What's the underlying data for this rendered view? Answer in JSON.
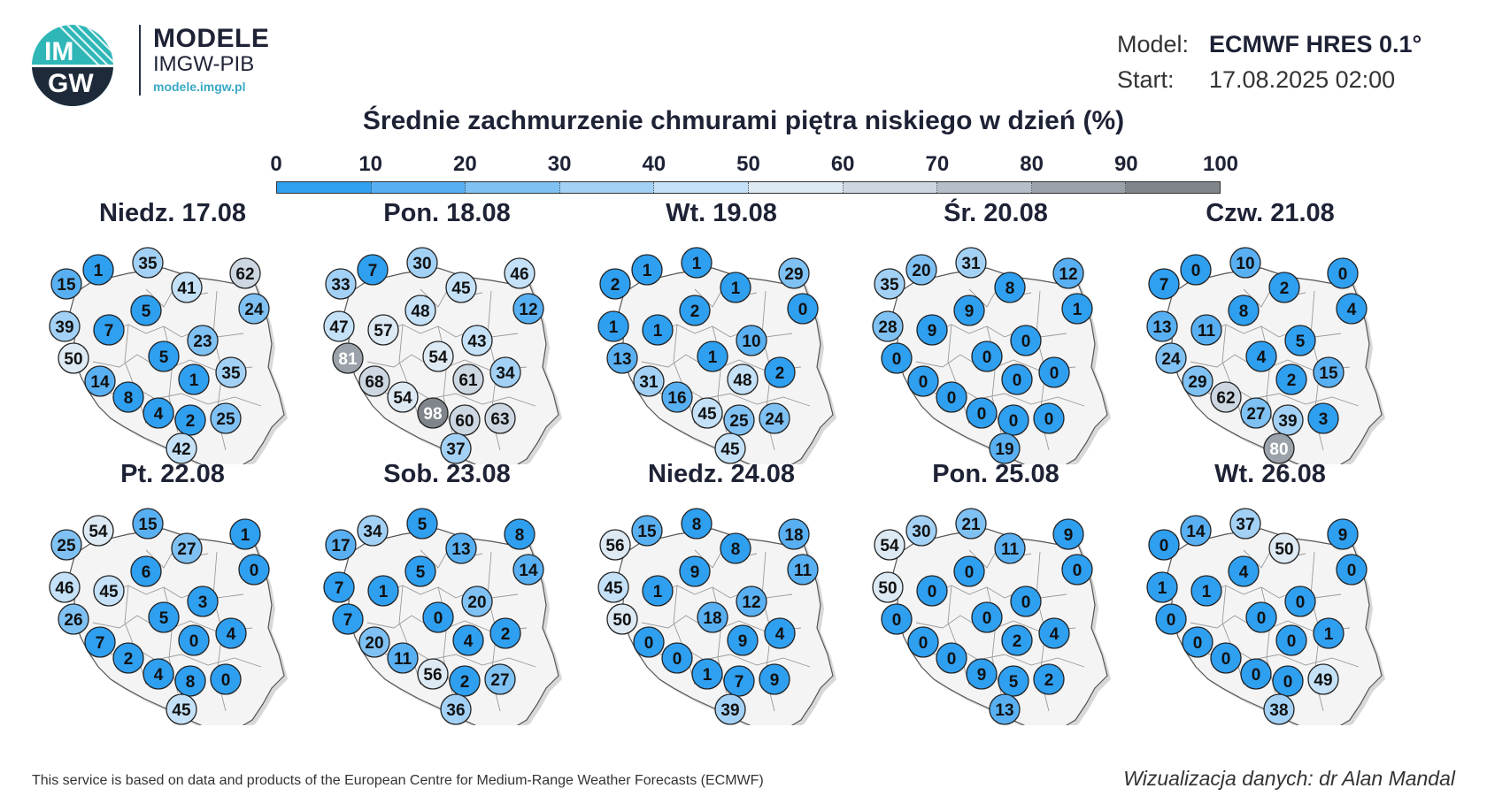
{
  "header": {
    "logo_text_top": "IM",
    "logo_text_bottom": "GW",
    "brand_name": "MODELE",
    "brand_sub": "IMGW-PIB",
    "brand_url": "modele.imgw.pl",
    "model_label": "Model:",
    "model_value": "ECMWF HRES 0.1°",
    "start_label": "Start:",
    "start_value": "17.08.2025 02:00"
  },
  "title": "Średnie zachmurzenie chmurami piętra niskiego w dzień (%)",
  "colorbar": {
    "ticks": [
      "0",
      "10",
      "20",
      "30",
      "40",
      "50",
      "60",
      "70",
      "80",
      "90",
      "100"
    ],
    "colors": [
      "#2f9ff0",
      "#58b0f2",
      "#7fc1f3",
      "#a3d1f5",
      "#c4e1f7",
      "#dde9f3",
      "#cdd7e1",
      "#b5bfc9",
      "#9ba2aa",
      "#80858c"
    ]
  },
  "days": [
    {
      "label": "Niedz. 17.08",
      "values": [
        15,
        1,
        35,
        62,
        41,
        24,
        5,
        39,
        7,
        23,
        50,
        5,
        35,
        14,
        1,
        8,
        4,
        2,
        25,
        42
      ]
    },
    {
      "label": "Pon. 18.08",
      "values": [
        33,
        7,
        30,
        46,
        45,
        12,
        48,
        47,
        57,
        43,
        81,
        54,
        34,
        68,
        61,
        54,
        98,
        60,
        63,
        37
      ]
    },
    {
      "label": "Wt. 19.08",
      "values": [
        2,
        1,
        1,
        29,
        1,
        0,
        2,
        1,
        1,
        10,
        13,
        1,
        2,
        31,
        48,
        16,
        45,
        25,
        24,
        45
      ]
    },
    {
      "label": "Śr. 20.08",
      "values": [
        35,
        20,
        31,
        12,
        8,
        1,
        9,
        28,
        9,
        0,
        0,
        0,
        0,
        0,
        0,
        0,
        0,
        0,
        0,
        19
      ]
    },
    {
      "label": "Czw. 21.08",
      "values": [
        7,
        0,
        10,
        0,
        2,
        4,
        8,
        13,
        11,
        5,
        24,
        4,
        15,
        29,
        2,
        62,
        27,
        39,
        3,
        80
      ]
    },
    {
      "label": "Pt. 22.08",
      "values": [
        25,
        54,
        15,
        1,
        27,
        0,
        6,
        46,
        45,
        3,
        26,
        5,
        4,
        7,
        0,
        2,
        4,
        8,
        0,
        45
      ]
    },
    {
      "label": "Sob. 23.08",
      "values": [
        17,
        34,
        5,
        8,
        13,
        14,
        5,
        7,
        1,
        20,
        7,
        0,
        2,
        20,
        4,
        11,
        56,
        2,
        27,
        36
      ]
    },
    {
      "label": "Niedz. 24.08",
      "values": [
        56,
        15,
        8,
        18,
        8,
        11,
        9,
        45,
        1,
        12,
        50,
        18,
        4,
        0,
        9,
        0,
        1,
        7,
        9,
        39
      ]
    },
    {
      "label": "Pon. 25.08",
      "values": [
        54,
        30,
        21,
        9,
        11,
        0,
        0,
        50,
        0,
        0,
        0,
        0,
        4,
        0,
        2,
        0,
        9,
        5,
        2,
        13
      ]
    },
    {
      "label": "Wt. 26.08",
      "values": [
        0,
        14,
        37,
        9,
        50,
        0,
        4,
        1,
        1,
        0,
        0,
        0,
        1,
        0,
        0,
        0,
        0,
        0,
        49,
        38
      ]
    }
  ],
  "footer": {
    "left": "This service is based on data and products of the European Centre for Medium-Range Weather Forecasts (ECMWF)",
    "right": "Wizualizacja danych: dr Alan Mandal"
  }
}
